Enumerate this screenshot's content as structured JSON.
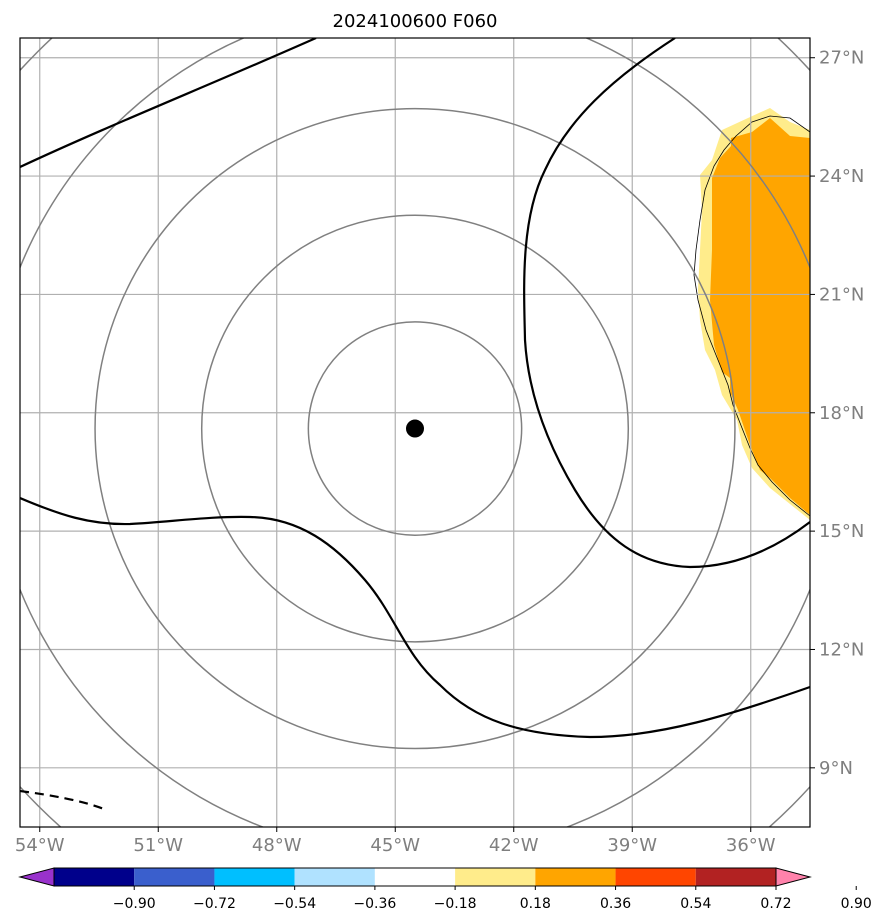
{
  "title": "2024100600 F060",
  "map": {
    "lon_range": [
      -54.5,
      -34.5
    ],
    "lat_range": [
      7.5,
      27.5
    ],
    "lon_ticks": [
      {
        "value": -54,
        "label": "54°W"
      },
      {
        "value": -51,
        "label": "51°W"
      },
      {
        "value": -48,
        "label": "48°W"
      },
      {
        "value": -45,
        "label": "45°W"
      },
      {
        "value": -42,
        "label": "42°W"
      },
      {
        "value": -39,
        "label": "39°W"
      },
      {
        "value": -36,
        "label": "36°W"
      }
    ],
    "lat_ticks": [
      {
        "value": 9,
        "label": "9°N"
      },
      {
        "value": 12,
        "label": "12°N"
      },
      {
        "value": 15,
        "label": "15°N"
      },
      {
        "value": 18,
        "label": "18°N"
      },
      {
        "value": 21,
        "label": "21°N"
      },
      {
        "value": 24,
        "label": "24°N"
      },
      {
        "value": 27,
        "label": "27°N"
      }
    ],
    "grid": true,
    "storm_center": {
      "lon": -44.5,
      "lat": 17.6
    },
    "range_rings": true,
    "colors": {
      "grid": "#b0b0b0",
      "rings": "#808080",
      "contour": "#000000",
      "tick_labels": "#7f7f7f",
      "center_dot": "#000000"
    }
  },
  "colorbar": {
    "colors": [
      "#9932cc",
      "#00008b",
      "#3a5fcd",
      "#00bfff",
      "#b0e2ff",
      "#ffffff",
      "#ffec8b",
      "#ffa500",
      "#ff4500",
      "#b22222",
      "#ff82ab"
    ],
    "labels": [
      "−0.90",
      "−0.72",
      "−0.54",
      "−0.36",
      "−0.18",
      "0.18",
      "0.36",
      "0.54",
      "0.72",
      "0.90"
    ],
    "extend": "both"
  }
}
